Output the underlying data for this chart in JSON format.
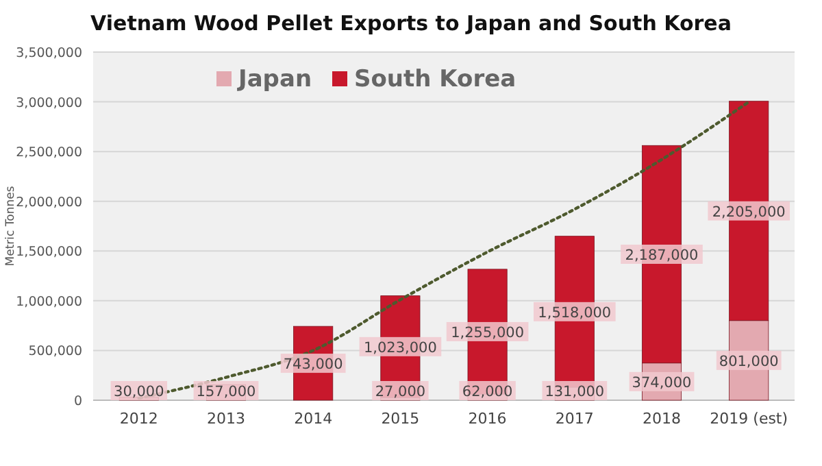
{
  "chart_data": {
    "type": "bar",
    "title": "Vietnam Wood Pellet Exports to Japan and South Korea",
    "ylabel": "Metric Tonnes",
    "categories": [
      "2012",
      "2013",
      "2014",
      "2015",
      "2016",
      "2017",
      "2018",
      "2019 (est)"
    ],
    "stacked": true,
    "grid": "y",
    "legend": "top left",
    "ylim": [
      0,
      3500000
    ],
    "yticks": [
      {
        "value": 0,
        "label": "0"
      },
      {
        "value": 500000,
        "label": "500,000"
      },
      {
        "value": 1000000,
        "label": "1,000,000"
      },
      {
        "value": 1500000,
        "label": "1,500,000"
      },
      {
        "value": 2000000,
        "label": "2,000,000"
      },
      {
        "value": 2500000,
        "label": "2,500,000"
      },
      {
        "value": 3000000,
        "label": "3,000,000"
      },
      {
        "value": 3500000,
        "label": "3,500,000"
      }
    ],
    "series": [
      {
        "name": "Japan",
        "color": "#e3a9b0",
        "values": [
          30000,
          157000,
          null,
          27000,
          62000,
          131000,
          374000,
          801000
        ],
        "value_labels": [
          "30,000",
          "157,000",
          null,
          "27,000",
          "62,000",
          "131,000",
          "374,000",
          "801,000"
        ]
      },
      {
        "name": "South Korea",
        "color": "#c8182c",
        "values": [
          null,
          null,
          743000,
          1023000,
          1255000,
          1518000,
          2187000,
          2205000
        ],
        "value_labels": [
          null,
          null,
          "743,000",
          "1,023,000",
          "1,255,000",
          "1,518,000",
          "2,187,000",
          "2,205,000"
        ]
      },
      {
        "type": "line",
        "color": "#4e5a2e",
        "line_style": "dotted",
        "marker": "none",
        "values": [
          20000,
          230000,
          500000,
          1010000,
          1490000,
          1920000,
          2420000,
          3000000
        ]
      }
    ]
  }
}
